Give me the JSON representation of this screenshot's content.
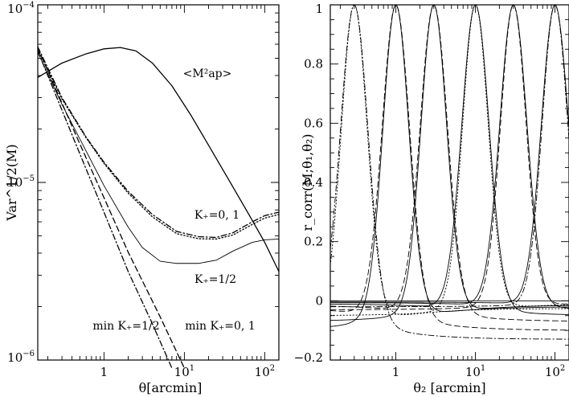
{
  "chart_data": [
    {
      "type": "line",
      "xlabel": "θ[arcmin]",
      "ylabel": "Var^1/2(M)",
      "xscale": "log",
      "yscale": "log",
      "xlim": [
        0.15,
        150
      ],
      "ylim": [
        1e-06,
        0.0001
      ],
      "x_ticklabels": [
        {
          "value": 1,
          "label": "1"
        },
        {
          "value": 10,
          "label": "10",
          "sup": "1"
        },
        {
          "value": 100,
          "label": "10",
          "sup": "2"
        }
      ],
      "y_ticklabels": [
        {
          "value": 0.0001,
          "label": "10",
          "sup": "−4"
        },
        {
          "value": 1e-05,
          "label": "10",
          "sup": "−5"
        },
        {
          "value": 1e-06,
          "label": "10",
          "sup": "−6"
        }
      ],
      "annotations": {
        "map": "<M²ap>",
        "k1": "K₊=0, 1",
        "k_half": "K₊=1/2",
        "min_half": "min K₊=1/2",
        "min_01": "min K₊=0, 1"
      },
      "series": [
        {
          "style": "solid",
          "points": [
            [
              0.15,
              3.9e-05
            ],
            [
              0.3,
              4.7e-05
            ],
            [
              0.6,
              5.3e-05
            ],
            [
              1,
              5.65e-05
            ],
            [
              1.6,
              5.75e-05
            ],
            [
              2.5,
              5.5e-05
            ],
            [
              4,
              4.7e-05
            ],
            [
              7,
              3.5e-05
            ],
            [
              12,
              2.4e-05
            ],
            [
              20,
              1.62e-05
            ],
            [
              35,
              1.05e-05
            ],
            [
              60,
              6.9e-06
            ],
            [
              100,
              4.6e-06
            ],
            [
              150,
              3.15e-06
            ]
          ]
        },
        {
          "style": "dashdot",
          "points": [
            [
              0.15,
              5.8e-05
            ],
            [
              0.3,
              3e-05
            ],
            [
              0.6,
              1.8e-05
            ],
            [
              1,
              1.3e-05
            ],
            [
              2,
              8.9e-06
            ],
            [
              4,
              6.6e-06
            ],
            [
              8,
              5.3e-06
            ],
            [
              15,
              4.95e-06
            ],
            [
              25,
              4.9e-06
            ],
            [
              40,
              5.2e-06
            ],
            [
              70,
              6e-06
            ],
            [
              100,
              6.5e-06
            ],
            [
              150,
              6.8e-06
            ]
          ]
        },
        {
          "style": "dotted",
          "points": [
            [
              0.15,
              5.6e-05
            ],
            [
              0.3,
              2.95e-05
            ],
            [
              0.6,
              1.78e-05
            ],
            [
              1,
              1.28e-05
            ],
            [
              2,
              8.7e-06
            ],
            [
              4,
              6.4e-06
            ],
            [
              8,
              5.15e-06
            ],
            [
              15,
              4.82e-06
            ],
            [
              25,
              4.8e-06
            ],
            [
              40,
              5.05e-06
            ],
            [
              70,
              5.8e-06
            ],
            [
              100,
              6.3e-06
            ],
            [
              150,
              6.6e-06
            ]
          ]
        },
        {
          "style": "solid",
          "width": 0.9,
          "points": [
            [
              0.15,
              5.4e-05
            ],
            [
              0.3,
              2.75e-05
            ],
            [
              0.6,
              1.5e-05
            ],
            [
              1,
              9.6e-06
            ],
            [
              2,
              5.6e-06
            ],
            [
              3,
              4.3e-06
            ],
            [
              5,
              3.6e-06
            ],
            [
              8,
              3.5e-06
            ],
            [
              15,
              3.5e-06
            ],
            [
              25,
              3.65e-06
            ],
            [
              40,
              4.1e-06
            ],
            [
              70,
              4.6e-06
            ],
            [
              100,
              4.75e-06
            ],
            [
              150,
              4.8e-06
            ]
          ]
        },
        {
          "style": "dashdot",
          "points": [
            [
              0.15,
              5.5e-05
            ],
            [
              0.5,
              1.45e-05
            ],
            [
              1,
              6.8e-06
            ],
            [
              2,
              3.15e-06
            ],
            [
              4,
              1.6e-06
            ],
            [
              7,
              9e-07
            ]
          ]
        },
        {
          "style": "dashed",
          "points": [
            [
              0.15,
              5.7e-05
            ],
            [
              0.5,
              1.65e-05
            ],
            [
              1,
              8.2e-06
            ],
            [
              2,
              4.05e-06
            ],
            [
              5,
              1.75e-06
            ],
            [
              10,
              9e-07
            ]
          ]
        }
      ]
    },
    {
      "type": "line",
      "xlabel": "θ₂ [arcmin]",
      "ylabel": "r_corr(M;θ₁,θ₂)",
      "xscale": "log",
      "xlim": [
        0.15,
        150
      ],
      "ylim": [
        -0.2,
        1
      ],
      "x_ticklabels": [
        {
          "value": 1,
          "label": "1"
        },
        {
          "value": 10,
          "label": "10",
          "sup": "1"
        },
        {
          "value": 100,
          "label": "10",
          "sup": "2"
        }
      ],
      "y_ticks": [
        -0.2,
        0,
        0.2,
        0.4,
        0.6,
        0.8,
        1
      ],
      "y_ticklabels": [
        "−0.2",
        "0",
        "0.2",
        "0.4",
        "0.6",
        "0.8",
        "1"
      ],
      "peaks": [
        {
          "theta1": 0.3,
          "styles": [
            "dotted",
            "dashdot"
          ],
          "tail": -0.13
        },
        {
          "theta1": 1,
          "styles": [
            "solid",
            "dashed"
          ],
          "tail": -0.1
        },
        {
          "theta1": 3,
          "styles": [
            "solid",
            "dashed"
          ],
          "tail": -0.07
        },
        {
          "theta1": 10,
          "styles": [
            "dotted",
            "solid"
          ],
          "tail": -0.05
        },
        {
          "theta1": 30,
          "styles": [
            "dashed",
            "solid"
          ],
          "tail": -0.03
        },
        {
          "theta1": 100,
          "styles": [
            "dashdot",
            "solid"
          ],
          "tail": -0.02
        }
      ]
    }
  ]
}
